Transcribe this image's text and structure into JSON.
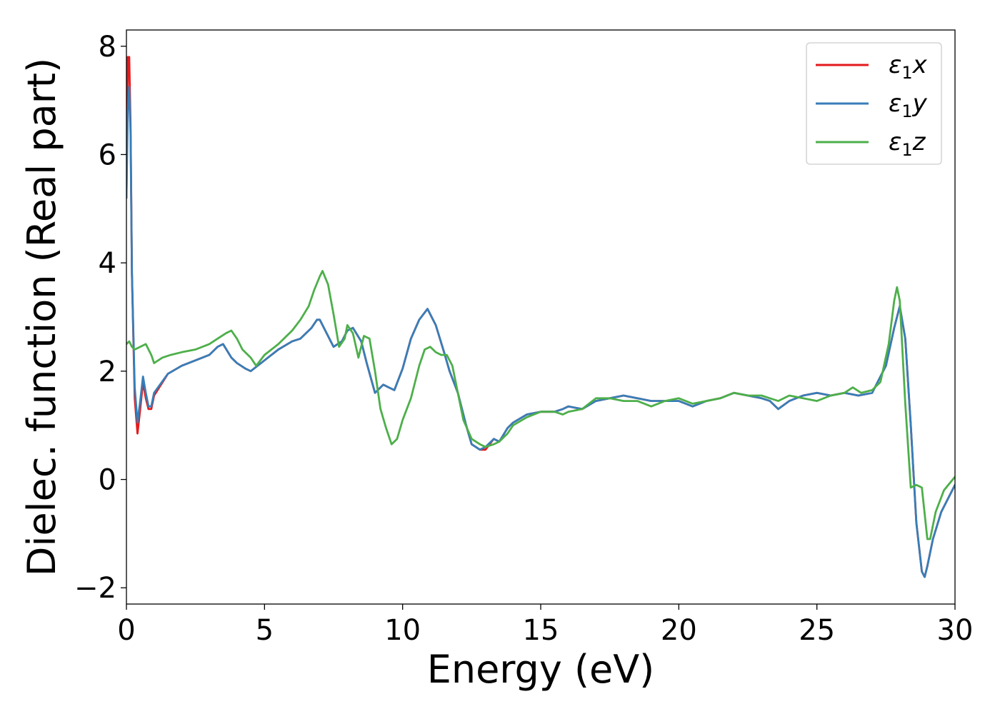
{
  "chart_data": {
    "type": "line",
    "title": "",
    "xlabel": "Energy (eV)",
    "ylabel": "Dielec. function (Real part)",
    "xlim": [
      0,
      30
    ],
    "ylim": [
      -2.3,
      8.3
    ],
    "xticks": [
      0,
      5,
      10,
      15,
      20,
      25,
      30
    ],
    "xtick_labels": [
      "0",
      "5",
      "10",
      "15",
      "20",
      "25",
      "30"
    ],
    "yticks": [
      -2,
      0,
      2,
      4,
      6,
      8
    ],
    "ytick_labels": [
      "−2",
      "0",
      "2",
      "4",
      "6",
      "8"
    ],
    "grid": false,
    "legend_position": "top-right",
    "series": [
      {
        "name": "ε",
        "sub": "1",
        "suffix": "x",
        "color": "#e41a1c",
        "x": [
          0,
          0.05,
          0.1,
          0.15,
          0.2,
          0.3,
          0.4,
          0.5,
          0.6,
          0.7,
          0.8,
          0.9,
          1.0,
          1.5,
          2.0,
          2.5,
          3.0,
          3.3,
          3.5,
          3.8,
          4.0,
          4.3,
          4.5,
          5.0,
          5.5,
          6.0,
          6.3,
          6.5,
          6.7,
          6.9,
          7.0,
          7.2,
          7.5,
          7.8,
          8.0,
          8.2,
          8.5,
          8.7,
          9.0,
          9.3,
          9.5,
          9.7,
          10.0,
          10.3,
          10.6,
          10.9,
          11.2,
          11.5,
          11.7,
          12.0,
          12.3,
          12.5,
          12.8,
          13.0,
          13.3,
          13.5,
          13.8,
          14.0,
          14.5,
          15.0,
          15.5,
          15.8,
          16.0,
          16.5,
          17.0,
          17.5,
          18.0,
          18.5,
          19.0,
          19.5,
          20.0,
          20.5,
          21.0,
          21.5,
          22.0,
          22.5,
          23.0,
          23.3,
          23.6,
          24.0,
          24.5,
          25.0,
          25.5,
          26.0,
          26.5,
          27.0,
          27.5,
          27.8,
          28.0,
          28.2,
          28.4,
          28.6,
          28.8,
          28.9,
          29.0,
          29.2,
          29.5,
          30.0
        ],
        "values": [
          5.2,
          7.8,
          7.8,
          6.5,
          3.8,
          1.5,
          0.85,
          1.3,
          1.8,
          1.5,
          1.3,
          1.3,
          1.55,
          1.95,
          2.1,
          2.2,
          2.3,
          2.45,
          2.5,
          2.25,
          2.15,
          2.05,
          2.0,
          2.2,
          2.4,
          2.55,
          2.6,
          2.7,
          2.8,
          2.95,
          2.95,
          2.75,
          2.45,
          2.55,
          2.75,
          2.8,
          2.55,
          2.15,
          1.6,
          1.75,
          1.7,
          1.65,
          2.05,
          2.6,
          2.95,
          3.15,
          2.85,
          2.35,
          2.0,
          1.6,
          1.0,
          0.65,
          0.55,
          0.55,
          0.75,
          0.7,
          0.95,
          1.05,
          1.2,
          1.25,
          1.25,
          1.3,
          1.35,
          1.3,
          1.45,
          1.5,
          1.55,
          1.5,
          1.45,
          1.45,
          1.45,
          1.35,
          1.45,
          1.5,
          1.6,
          1.55,
          1.5,
          1.45,
          1.3,
          1.45,
          1.55,
          1.6,
          1.55,
          1.6,
          1.55,
          1.6,
          2.1,
          2.8,
          3.2,
          2.6,
          1.0,
          -0.8,
          -1.7,
          -1.8,
          -1.6,
          -1.1,
          -0.6,
          -0.1
        ]
      },
      {
        "name": "ε",
        "sub": "1",
        "suffix": "y",
        "color": "#377eb8",
        "x": [
          0,
          0.05,
          0.1,
          0.15,
          0.2,
          0.3,
          0.4,
          0.5,
          0.6,
          0.7,
          0.8,
          0.9,
          1.0,
          1.5,
          2.0,
          2.5,
          3.0,
          3.3,
          3.5,
          3.8,
          4.0,
          4.3,
          4.5,
          5.0,
          5.5,
          6.0,
          6.3,
          6.5,
          6.7,
          6.9,
          7.0,
          7.2,
          7.5,
          7.8,
          8.0,
          8.2,
          8.5,
          8.7,
          9.0,
          9.3,
          9.5,
          9.7,
          10.0,
          10.3,
          10.6,
          10.9,
          11.2,
          11.5,
          11.7,
          12.0,
          12.3,
          12.5,
          12.8,
          13.0,
          13.3,
          13.5,
          13.8,
          14.0,
          14.5,
          15.0,
          15.5,
          15.8,
          16.0,
          16.5,
          17.0,
          17.5,
          18.0,
          18.5,
          19.0,
          19.5,
          20.0,
          20.5,
          21.0,
          21.5,
          22.0,
          22.5,
          23.0,
          23.3,
          23.6,
          24.0,
          24.5,
          25.0,
          25.5,
          26.0,
          26.5,
          27.0,
          27.5,
          27.8,
          28.0,
          28.2,
          28.4,
          28.6,
          28.8,
          28.9,
          29.0,
          29.2,
          29.5,
          30.0
        ],
        "values": [
          5.2,
          6.8,
          7.25,
          6.4,
          3.8,
          1.7,
          1.05,
          1.45,
          1.9,
          1.6,
          1.35,
          1.35,
          1.6,
          1.95,
          2.1,
          2.2,
          2.3,
          2.45,
          2.5,
          2.25,
          2.15,
          2.05,
          2.0,
          2.2,
          2.4,
          2.55,
          2.6,
          2.7,
          2.8,
          2.95,
          2.95,
          2.75,
          2.45,
          2.55,
          2.75,
          2.8,
          2.55,
          2.15,
          1.6,
          1.75,
          1.7,
          1.65,
          2.05,
          2.6,
          2.95,
          3.15,
          2.85,
          2.35,
          2.0,
          1.6,
          1.0,
          0.65,
          0.55,
          0.6,
          0.75,
          0.7,
          0.95,
          1.05,
          1.2,
          1.25,
          1.25,
          1.3,
          1.35,
          1.3,
          1.45,
          1.5,
          1.55,
          1.5,
          1.45,
          1.45,
          1.45,
          1.35,
          1.45,
          1.5,
          1.6,
          1.55,
          1.5,
          1.45,
          1.3,
          1.45,
          1.55,
          1.6,
          1.55,
          1.6,
          1.55,
          1.6,
          2.1,
          2.8,
          3.2,
          2.6,
          1.0,
          -0.8,
          -1.7,
          -1.8,
          -1.6,
          -1.1,
          -0.6,
          -0.1
        ]
      },
      {
        "name": "ε",
        "sub": "1",
        "suffix": "z",
        "color": "#4daf4a",
        "x": [
          0,
          0.1,
          0.2,
          0.3,
          0.5,
          0.7,
          0.9,
          1.0,
          1.3,
          1.6,
          2.0,
          2.5,
          3.0,
          3.3,
          3.6,
          3.8,
          4.0,
          4.2,
          4.5,
          4.7,
          5.0,
          5.5,
          6.0,
          6.3,
          6.6,
          6.8,
          7.0,
          7.1,
          7.3,
          7.5,
          7.7,
          7.9,
          8.0,
          8.2,
          8.4,
          8.6,
          8.8,
          9.0,
          9.2,
          9.4,
          9.6,
          9.8,
          10.0,
          10.3,
          10.6,
          10.8,
          11.0,
          11.2,
          11.4,
          11.6,
          11.8,
          12.0,
          12.2,
          12.5,
          12.8,
          13.0,
          13.3,
          13.5,
          13.8,
          14.0,
          14.5,
          15.0,
          15.5,
          15.8,
          16.0,
          16.5,
          17.0,
          17.5,
          18.0,
          18.5,
          19.0,
          19.5,
          20.0,
          20.5,
          21.0,
          21.5,
          22.0,
          22.5,
          23.0,
          23.3,
          23.6,
          24.0,
          24.5,
          25.0,
          25.5,
          26.0,
          26.3,
          26.6,
          27.0,
          27.3,
          27.6,
          27.8,
          27.9,
          28.0,
          28.2,
          28.4,
          28.6,
          28.8,
          29.0,
          29.1,
          29.3,
          29.6,
          30.0
        ],
        "values": [
          2.5,
          2.55,
          2.45,
          2.4,
          2.45,
          2.5,
          2.3,
          2.15,
          2.25,
          2.3,
          2.35,
          2.4,
          2.5,
          2.6,
          2.7,
          2.75,
          2.6,
          2.4,
          2.25,
          2.1,
          2.3,
          2.5,
          2.75,
          2.95,
          3.2,
          3.5,
          3.75,
          3.85,
          3.6,
          3.05,
          2.45,
          2.6,
          2.85,
          2.7,
          2.25,
          2.65,
          2.6,
          2.0,
          1.3,
          0.95,
          0.65,
          0.75,
          1.1,
          1.5,
          2.1,
          2.4,
          2.45,
          2.35,
          2.3,
          2.3,
          2.1,
          1.6,
          1.1,
          0.75,
          0.65,
          0.6,
          0.65,
          0.7,
          0.85,
          1.0,
          1.15,
          1.25,
          1.25,
          1.2,
          1.25,
          1.3,
          1.5,
          1.5,
          1.45,
          1.45,
          1.35,
          1.45,
          1.5,
          1.4,
          1.45,
          1.5,
          1.6,
          1.55,
          1.55,
          1.5,
          1.45,
          1.55,
          1.5,
          1.45,
          1.55,
          1.6,
          1.7,
          1.6,
          1.65,
          1.8,
          2.5,
          3.3,
          3.55,
          3.3,
          1.4,
          -0.15,
          -0.1,
          -0.15,
          -1.1,
          -1.1,
          -0.6,
          -0.2,
          0.05
        ]
      }
    ]
  }
}
